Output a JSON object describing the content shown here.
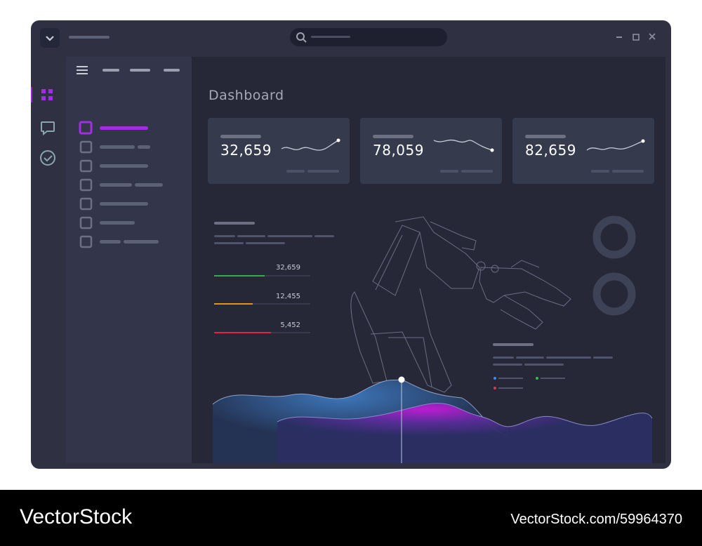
{
  "header": {
    "title": "Dashboard"
  },
  "stat_cards": [
    {
      "value": "32,659"
    },
    {
      "value": "78,059"
    },
    {
      "value": "82,659"
    }
  ],
  "progress": [
    {
      "value": "32,659"
    },
    {
      "value": "12,455"
    },
    {
      "value": "5,452"
    }
  ],
  "watermark": {
    "brand": "VectorStock",
    "id": "VectorStock.com/59964370"
  }
}
